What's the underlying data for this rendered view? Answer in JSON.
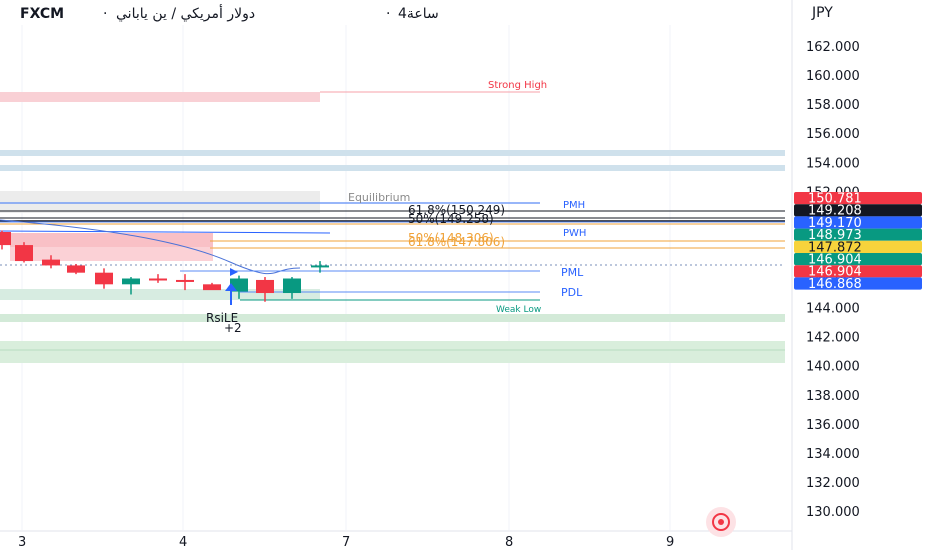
{
  "header": {
    "symbol": "FXCM",
    "separator": "·",
    "description": "دولار أمريكي / ين ياباني",
    "interval": "4ساعة"
  },
  "price_axis": {
    "currency": "JPY",
    "ticks": [
      "162.000",
      "160.000",
      "158.000",
      "156.000",
      "154.000",
      "152.000",
      "150.000",
      "148.000",
      "146.000",
      "144.000",
      "142.000",
      "140.000",
      "138.000",
      "136.000",
      "134.000",
      "132.000",
      "130.000"
    ]
  },
  "time_axis": {
    "ticks": [
      "3",
      "4",
      "7",
      "8",
      "9"
    ]
  },
  "price_labels": [
    {
      "value": "150.781",
      "bg": "#f23645",
      "fg": "#ffffff"
    },
    {
      "value": "149.208",
      "bg": "#131722",
      "fg": "#ffffff"
    },
    {
      "value": "149.170",
      "bg": "#2962ff",
      "fg": "#ffffff"
    },
    {
      "value": "148.973",
      "bg": "#089981",
      "fg": "#ffffff"
    },
    {
      "value": "147.872",
      "bg": "#f7d33c",
      "fg": "#131722"
    },
    {
      "value": "146.904",
      "bg": "#089981",
      "fg": "#ffffff"
    },
    {
      "value": "146.904",
      "bg": "#f23645",
      "fg": "#ffffff"
    },
    {
      "value": "146.868",
      "bg": "#2962ff",
      "fg": "#ffffff"
    }
  ],
  "annotations": {
    "strong_high": "Strong High",
    "equilibrium": "Equilibrium",
    "pmh": "PMH",
    "fib618": "61.8%(150.249)",
    "fib50": "50%(149.258)",
    "pwh": "PWH",
    "fib_low_1": "50%(148.306)",
    "fib_low_2": "61.8%(147.806)",
    "pml": "PML",
    "pdl": "PDL",
    "weak_low": "Weak Low",
    "signal": "RsiLE",
    "signal_count": "+2"
  },
  "colors": {
    "up": "#089981",
    "down": "#f23645",
    "zone_red": "#f7c5ca",
    "zone_green": "#cfe8d6",
    "zone_blue": "#c3dbe8",
    "zone_grey": "#e6e6e6",
    "fib": "#f0a33a",
    "line_blue": "#2962ff"
  },
  "chart_data": {
    "type": "candlestick",
    "y_axis": {
      "min": 128.5,
      "max": 163.5,
      "unit": "JPY"
    },
    "x_ticks": [
      "3",
      "4",
      "7",
      "8",
      "9"
    ],
    "candles": [
      {
        "o": 149.2,
        "h": 149.3,
        "l": 148.0,
        "c": 148.3
      },
      {
        "o": 148.3,
        "h": 148.5,
        "l": 147.1,
        "c": 147.2
      },
      {
        "o": 147.3,
        "h": 147.6,
        "l": 146.7,
        "c": 146.9
      },
      {
        "o": 146.9,
        "h": 147.0,
        "l": 146.3,
        "c": 146.4
      },
      {
        "o": 146.4,
        "h": 146.7,
        "l": 145.3,
        "c": 145.6
      },
      {
        "o": 145.6,
        "h": 146.1,
        "l": 144.9,
        "c": 146.0
      },
      {
        "o": 146.0,
        "h": 146.3,
        "l": 145.7,
        "c": 145.9
      },
      {
        "o": 145.9,
        "h": 146.3,
        "l": 145.2,
        "c": 145.8
      },
      {
        "o": 145.6,
        "h": 145.7,
        "l": 145.3,
        "c": 145.2
      },
      {
        "o": 145.1,
        "h": 146.2,
        "l": 144.6,
        "c": 146.0
      },
      {
        "o": 145.9,
        "h": 146.1,
        "l": 144.4,
        "c": 145.0
      },
      {
        "o": 145.0,
        "h": 146.1,
        "l": 144.6,
        "c": 146.0
      },
      {
        "o": 146.8,
        "h": 147.2,
        "l": 146.4,
        "c": 146.9
      }
    ],
    "levels": {
      "strong_high": 158.6,
      "equilibrium": 151.3,
      "pmh": 150.78,
      "fib_618": 150.25,
      "fib_50": 149.26,
      "pwh": 149.17,
      "fib_50_low": 148.31,
      "fib_618_low": 147.81,
      "pml": 146.0,
      "pdl": 144.9,
      "weak_low": 144.3
    }
  }
}
